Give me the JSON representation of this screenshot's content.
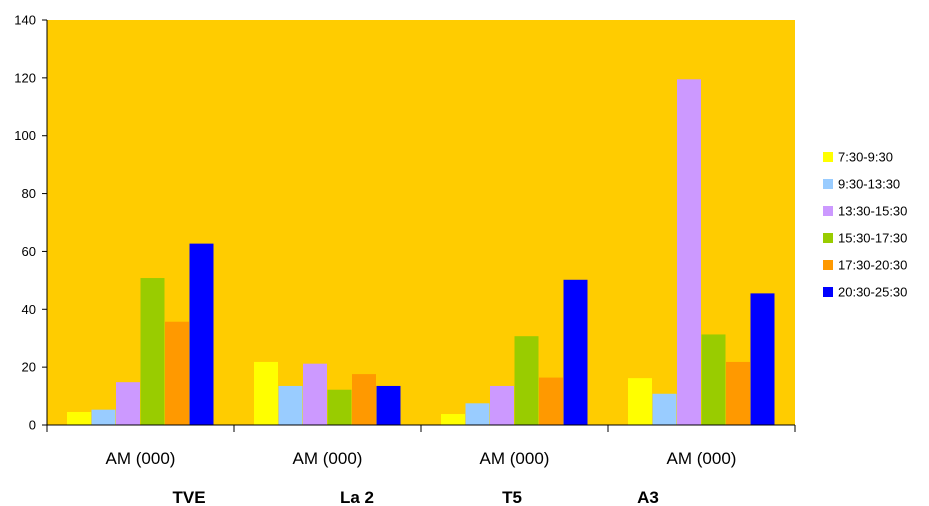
{
  "chart_data": {
    "type": "bar",
    "categories": [
      "AM (000)",
      "AM (000)",
      "AM (000)",
      "AM (000)"
    ],
    "group_labels": [
      "TVE",
      "La 2",
      "T5",
      "A3"
    ],
    "ylim": [
      0,
      140
    ],
    "yticks": [
      0,
      20,
      40,
      60,
      80,
      100,
      120,
      140
    ],
    "legend_position": "right",
    "plot_background": "#FFCC00",
    "series": [
      {
        "name": "7:30-9:30",
        "color": "#FFFF00",
        "values": [
          4.5,
          21.8,
          3.8,
          16.2
        ]
      },
      {
        "name": "9:30-13:30",
        "color": "#99CCFF",
        "values": [
          5.3,
          13.5,
          7.5,
          10.8
        ]
      },
      {
        "name": "13:30-15:30",
        "color": "#CC99FF",
        "values": [
          14.8,
          21.2,
          13.5,
          119.5
        ]
      },
      {
        "name": "15:30-17:30",
        "color": "#99CC00",
        "values": [
          50.8,
          12.2,
          30.7,
          31.3
        ]
      },
      {
        "name": "17:30-20:30",
        "color": "#FF9900",
        "values": [
          35.7,
          17.6,
          16.4,
          21.8
        ]
      },
      {
        "name": "20:30-25:30",
        "color": "#0000FF",
        "values": [
          62.7,
          13.5,
          50.2,
          45.5
        ]
      }
    ]
  }
}
